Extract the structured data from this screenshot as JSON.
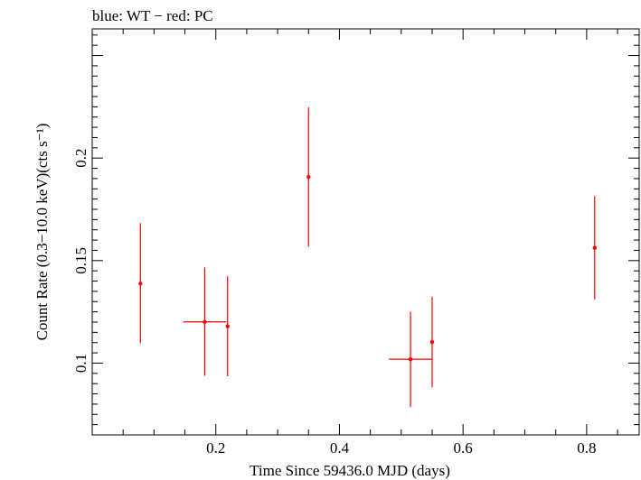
{
  "chart_data": {
    "type": "scatter",
    "title": "blue: WT − red: PC",
    "xlabel": "Time Since 59436.0 MJD (days)",
    "ylabel": "Count Rate (0.3−10.0 keV)(cts s⁻¹)",
    "xlim": [
      0.0,
      0.885
    ],
    "ylim": [
      0.065,
      0.263
    ],
    "x_ticks": [
      {
        "value": 0.2,
        "label": "0.2"
      },
      {
        "value": 0.4,
        "label": "0.4"
      },
      {
        "value": 0.6,
        "label": "0.6"
      },
      {
        "value": 0.8,
        "label": "0.8"
      }
    ],
    "y_ticks": [
      {
        "value": 0.1,
        "label": "0.1"
      },
      {
        "value": 0.15,
        "label": "0.15"
      },
      {
        "value": 0.2,
        "label": "0.2"
      }
    ],
    "grid": false,
    "series": [
      {
        "name": "PC",
        "color": "#ff0000",
        "points": [
          {
            "x": 0.078,
            "y": 0.1388,
            "xerr_lo": 0.0,
            "xerr_hi": 0.0,
            "y_lo": 0.1097,
            "y_hi": 0.1683
          },
          {
            "x": 0.182,
            "y": 0.1201,
            "xerr_lo": 0.035,
            "xerr_hi": 0.035,
            "y_lo": 0.0938,
            "y_hi": 0.1467
          },
          {
            "x": 0.219,
            "y": 0.118,
            "xerr_lo": 0.0,
            "xerr_hi": 0.0,
            "y_lo": 0.0936,
            "y_hi": 0.1424
          },
          {
            "x": 0.35,
            "y": 0.1908,
            "xerr_lo": 0.0,
            "xerr_hi": 0.0,
            "y_lo": 0.1568,
            "y_hi": 0.2248
          },
          {
            "x": 0.515,
            "y": 0.1019,
            "xerr_lo": 0.035,
            "xerr_hi": 0.035,
            "y_lo": 0.0786,
            "y_hi": 0.1251
          },
          {
            "x": 0.55,
            "y": 0.1103,
            "xerr_lo": 0.0,
            "xerr_hi": 0.0,
            "y_lo": 0.0881,
            "y_hi": 0.1324
          },
          {
            "x": 0.813,
            "y": 0.1562,
            "xerr_lo": 0.0,
            "xerr_hi": 0.0,
            "y_lo": 0.131,
            "y_hi": 0.1815
          }
        ]
      }
    ]
  }
}
